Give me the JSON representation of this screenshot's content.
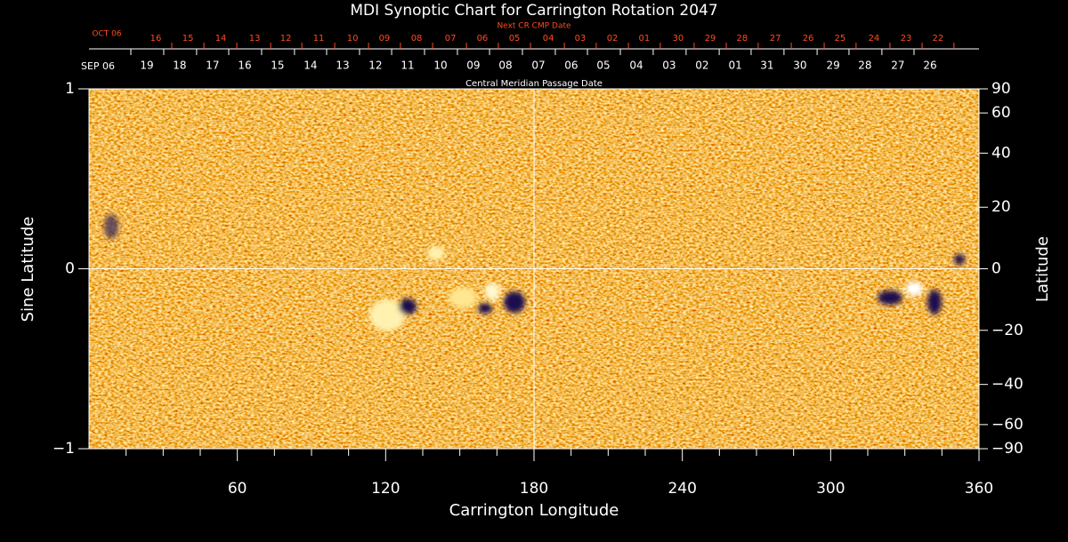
{
  "chart_data": {
    "type": "synoptic-map",
    "title": "MDI Synoptic Chart for Carrington Rotation 2047",
    "xlabel": "Carrington Longitude",
    "ylabel": "Sine Latitude",
    "y2label": "Latitude",
    "xlim": [
      0,
      360
    ],
    "xticks": [
      60,
      120,
      180,
      240,
      300,
      360
    ],
    "xminor_ticks": [
      15,
      30,
      45,
      75,
      90,
      105,
      135,
      150,
      165,
      195,
      210,
      225,
      255,
      270,
      285,
      315,
      330,
      345
    ],
    "ylim": [
      -1,
      1
    ],
    "yticks": [
      {
        "value": -1,
        "label": "−1"
      },
      0,
      1
    ],
    "y2lim": [
      -90,
      90
    ],
    "y2scale": "sine",
    "y2ticks": [
      90,
      60,
      40,
      20,
      0,
      {
        "value": -20,
        "label": "−20"
      },
      {
        "value": -40,
        "label": "−40"
      },
      {
        "value": -60,
        "label": "−60"
      },
      {
        "value": -90,
        "label": "−90"
      }
    ],
    "cmp_dates": {
      "axis_label": "Central Meridian Passage Date",
      "start_label": "SEP 06",
      "color": "#ffffff",
      "ticks": [
        {
          "value": 23.4,
          "label": "19"
        },
        {
          "value": 36.7,
          "label": "18"
        },
        {
          "value": 50.0,
          "label": "17"
        },
        {
          "value": 63.0,
          "label": "16"
        },
        {
          "value": 76.3,
          "label": "15"
        },
        {
          "value": 89.6,
          "label": "14"
        },
        {
          "value": 102.6,
          "label": "13"
        },
        {
          "value": 115.9,
          "label": "12"
        },
        {
          "value": 128.9,
          "label": "11"
        },
        {
          "value": 142.2,
          "label": "10"
        },
        {
          "value": 155.5,
          "label": "09"
        },
        {
          "value": 168.5,
          "label": "08"
        },
        {
          "value": 181.8,
          "label": "07"
        },
        {
          "value": 195.1,
          "label": "06"
        },
        {
          "value": 208.1,
          "label": "05"
        },
        {
          "value": 221.4,
          "label": "04"
        },
        {
          "value": 234.7,
          "label": "03"
        },
        {
          "value": 248.0,
          "label": "02"
        },
        {
          "value": 261.4,
          "label": "01"
        },
        {
          "value": 274.3,
          "label": "31"
        },
        {
          "value": 287.6,
          "label": "30"
        },
        {
          "value": 301.0,
          "label": "29"
        },
        {
          "value": 313.9,
          "label": "28"
        },
        {
          "value": 327.2,
          "label": "27"
        },
        {
          "value": 340.2,
          "label": "26"
        }
      ]
    },
    "next_cr_dates": {
      "axis_label": "Next CR CMP Date",
      "start_label": "OCT 06",
      "color": "#ff4a1c",
      "ticks": [
        {
          "value": 27.0,
          "label": "16"
        },
        {
          "value": 40.0,
          "label": "15"
        },
        {
          "value": 53.3,
          "label": "14"
        },
        {
          "value": 67.0,
          "label": "13"
        },
        {
          "value": 79.6,
          "label": "12"
        },
        {
          "value": 92.9,
          "label": "11"
        },
        {
          "value": 106.6,
          "label": "10"
        },
        {
          "value": 119.5,
          "label": "09"
        },
        {
          "value": 132.5,
          "label": "08"
        },
        {
          "value": 146.2,
          "label": "07"
        },
        {
          "value": 159.1,
          "label": "06"
        },
        {
          "value": 172.1,
          "label": "05"
        },
        {
          "value": 185.8,
          "label": "04"
        },
        {
          "value": 198.7,
          "label": "03"
        },
        {
          "value": 211.7,
          "label": "02"
        },
        {
          "value": 224.6,
          "label": "01"
        },
        {
          "value": 238.3,
          "label": "30"
        },
        {
          "value": 251.3,
          "label": "29"
        },
        {
          "value": 264.2,
          "label": "28"
        },
        {
          "value": 277.6,
          "label": "27"
        },
        {
          "value": 290.9,
          "label": "26"
        },
        {
          "value": 303.8,
          "label": "25"
        },
        {
          "value": 317.5,
          "label": "24"
        },
        {
          "value": 330.5,
          "label": "23"
        },
        {
          "value": 343.4,
          "label": "22"
        }
      ]
    }
  }
}
